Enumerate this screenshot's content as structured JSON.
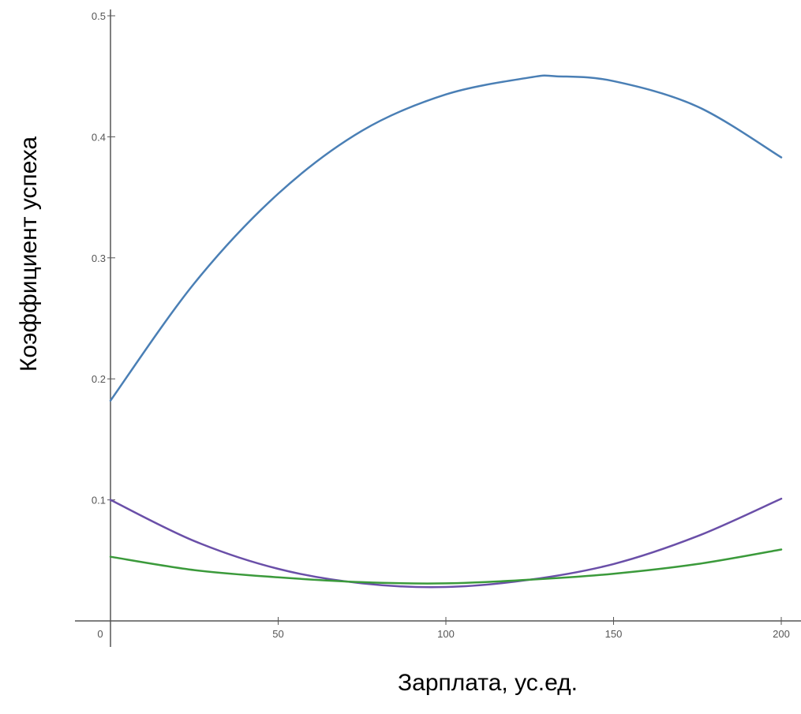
{
  "chart_data": {
    "type": "line",
    "xlabel": "Зарплата, ус.ед.",
    "ylabel": "Коэффициент успеха",
    "xlim": [
      0,
      200
    ],
    "ylim": [
      0,
      0.5
    ],
    "x_ticks": [
      "0",
      "50",
      "100",
      "150",
      "200"
    ],
    "y_ticks": [
      "0.1",
      "0.2",
      "0.3",
      "0.4",
      "0.5"
    ],
    "grid": false,
    "legend": "none",
    "series": [
      {
        "color": "#4a7fb5",
        "x": [
          0,
          25,
          50,
          75,
          100,
          125,
          133,
          150,
          175,
          200
        ],
        "y": [
          0.182,
          0.279,
          0.353,
          0.405,
          0.435,
          0.449,
          0.45,
          0.446,
          0.425,
          0.383
        ]
      },
      {
        "color": "#6a4fa8",
        "x": [
          0,
          25,
          50,
          75,
          100,
          125,
          150,
          175,
          200
        ],
        "y": [
          0.1,
          0.066,
          0.043,
          0.031,
          0.028,
          0.034,
          0.047,
          0.07,
          0.101
        ]
      },
      {
        "color": "#3b9a3b",
        "x": [
          0,
          25,
          50,
          75,
          100,
          125,
          150,
          175,
          200
        ],
        "y": [
          0.053,
          0.042,
          0.036,
          0.032,
          0.031,
          0.034,
          0.039,
          0.047,
          0.059
        ]
      }
    ]
  }
}
